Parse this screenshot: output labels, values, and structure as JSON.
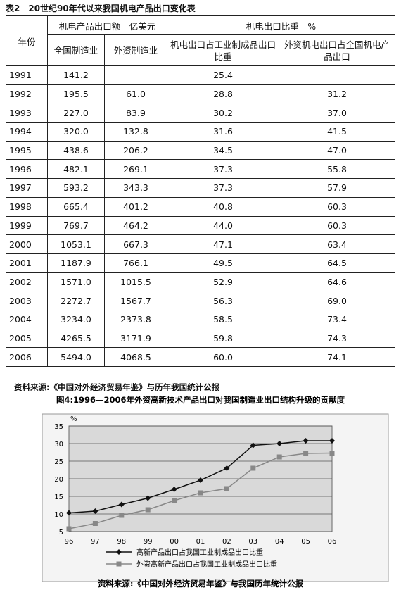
{
  "title": "表2　20世纪90年代以来我国机电产品出口变化表",
  "table": {
    "header": {
      "year": "年份",
      "group1": "机电产品出口额　亿美元",
      "group2": "机电出口比重　%",
      "sub": [
        "全国制造业",
        "外资制造业",
        "机电出口占工业制成品出口比重",
        "外资机电出口占全国机电产品出口"
      ]
    },
    "rows": [
      [
        "1991",
        "141.2",
        null,
        "25.4",
        null
      ],
      [
        "1992",
        "195.5",
        "61.0",
        "28.8",
        "31.2"
      ],
      [
        "1993",
        "227.0",
        "83.9",
        "30.2",
        "37.0"
      ],
      [
        "1994",
        "320.0",
        "132.8",
        "31.6",
        "41.5"
      ],
      [
        "1995",
        "438.6",
        "206.2",
        "34.5",
        "47.0"
      ],
      [
        "1996",
        "482.1",
        "269.1",
        "37.3",
        "55.8"
      ],
      [
        "1997",
        "593.2",
        "343.3",
        "37.3",
        "57.9"
      ],
      [
        "1998",
        "665.4",
        "401.2",
        "40.8",
        "60.3"
      ],
      [
        "1999",
        "769.7",
        "464.2",
        "44.0",
        "60.3"
      ],
      [
        "2000",
        "1053.1",
        "667.3",
        "47.1",
        "63.4"
      ],
      [
        "2001",
        "1187.9",
        "766.1",
        "49.5",
        "64.5"
      ],
      [
        "2002",
        "1571.0",
        "1015.5",
        "52.9",
        "64.6"
      ],
      [
        "2003",
        "2272.7",
        "1567.7",
        "56.3",
        "69.0"
      ],
      [
        "2004",
        "3234.0",
        "2373.8",
        "58.5",
        "73.4"
      ],
      [
        "2005",
        "4265.5",
        "3171.9",
        "59.8",
        "74.3"
      ],
      [
        "2006",
        "5494.0",
        "4068.5",
        "60.0",
        "74.1"
      ]
    ]
  },
  "source": "资料来源:《中国对外经济贸易年鉴》与历年我国统计公报",
  "chart_data": {
    "type": "line",
    "title": "图4:1996—2006年外资高新技术产品出口对我国制造业出口结构升级的贡献度",
    "y_label": "%",
    "categories": [
      "96",
      "97",
      "98",
      "99",
      "00",
      "01",
      "02",
      "03",
      "04",
      "05",
      "06"
    ],
    "series": [
      {
        "name": "高新产品出口占我国工业制成品出口比重",
        "color": "#111111",
        "marker": "diamond",
        "values": [
          10.3,
          10.8,
          12.7,
          14.5,
          17.0,
          19.6,
          23.0,
          29.5,
          30.0,
          30.8,
          30.8
        ]
      },
      {
        "name": "外资高新产品出口占我国工业制成品出口比重",
        "color": "#888888",
        "marker": "square",
        "values": [
          5.8,
          7.3,
          9.6,
          11.2,
          13.8,
          16.0,
          17.2,
          23.0,
          26.2,
          27.2,
          27.3
        ]
      }
    ],
    "ylim": [
      5,
      35
    ],
    "yticks": [
      5,
      10,
      15,
      20,
      25,
      30,
      35
    ],
    "grid": true,
    "source": "资料来源:《中国对外经济贸易年鉴》与我国历年统计公报"
  }
}
